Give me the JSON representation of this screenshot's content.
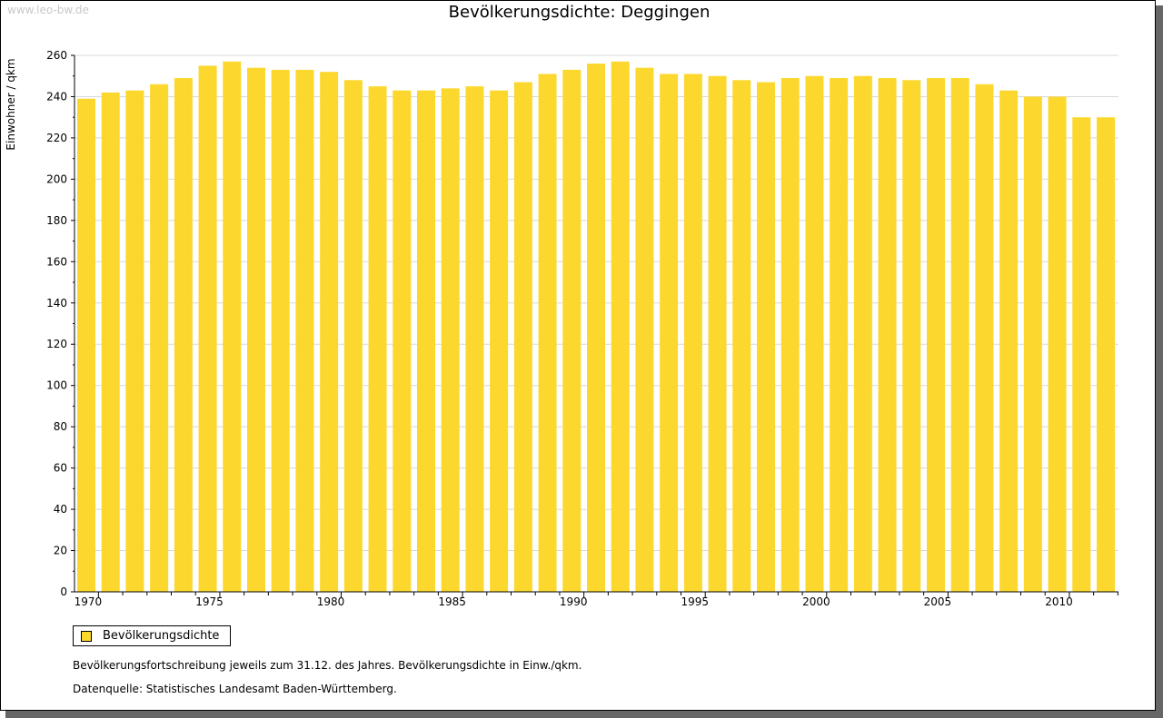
{
  "watermark": "www.leo-bw.de",
  "chart_data": {
    "type": "bar",
    "title": "Bevölkerungsdichte: Deggingen",
    "ylabel": "Einwohner / qkm",
    "xlabel": "",
    "ylim": [
      0,
      260
    ],
    "yticks": [
      0,
      20,
      40,
      60,
      80,
      100,
      120,
      140,
      160,
      180,
      200,
      220,
      240,
      260
    ],
    "xtick_labels": [
      "1970",
      "1975",
      "1980",
      "1985",
      "1990",
      "1995",
      "2000",
      "2005",
      "2010"
    ],
    "categories": [
      1970,
      1971,
      1972,
      1973,
      1974,
      1975,
      1976,
      1977,
      1978,
      1979,
      1980,
      1981,
      1982,
      1983,
      1984,
      1985,
      1986,
      1987,
      1988,
      1989,
      1990,
      1991,
      1992,
      1993,
      1994,
      1995,
      1996,
      1997,
      1998,
      1999,
      2000,
      2001,
      2002,
      2003,
      2004,
      2005,
      2006,
      2007,
      2008,
      2009,
      2010,
      2011,
      2012
    ],
    "series": [
      {
        "name": "Bevölkerungsdichte",
        "color": "#fcd82e",
        "values": [
          239,
          242,
          243,
          246,
          249,
          255,
          257,
          254,
          253,
          253,
          252,
          248,
          245,
          243,
          243,
          244,
          245,
          243,
          247,
          251,
          253,
          256,
          257,
          254,
          251,
          251,
          250,
          248,
          247,
          249,
          250,
          249,
          250,
          249,
          248,
          249,
          249,
          246,
          243,
          240,
          240,
          230,
          230
        ]
      }
    ],
    "grid": true,
    "legend_position": "bottom-left"
  },
  "notes": {
    "line1": "Bevölkerungsfortschreibung jeweils zum 31.12. des Jahres. Bevölkerungsdichte in Einw./qkm.",
    "line2": "Datenquelle: Statistisches Landesamt Baden-Württemberg."
  }
}
